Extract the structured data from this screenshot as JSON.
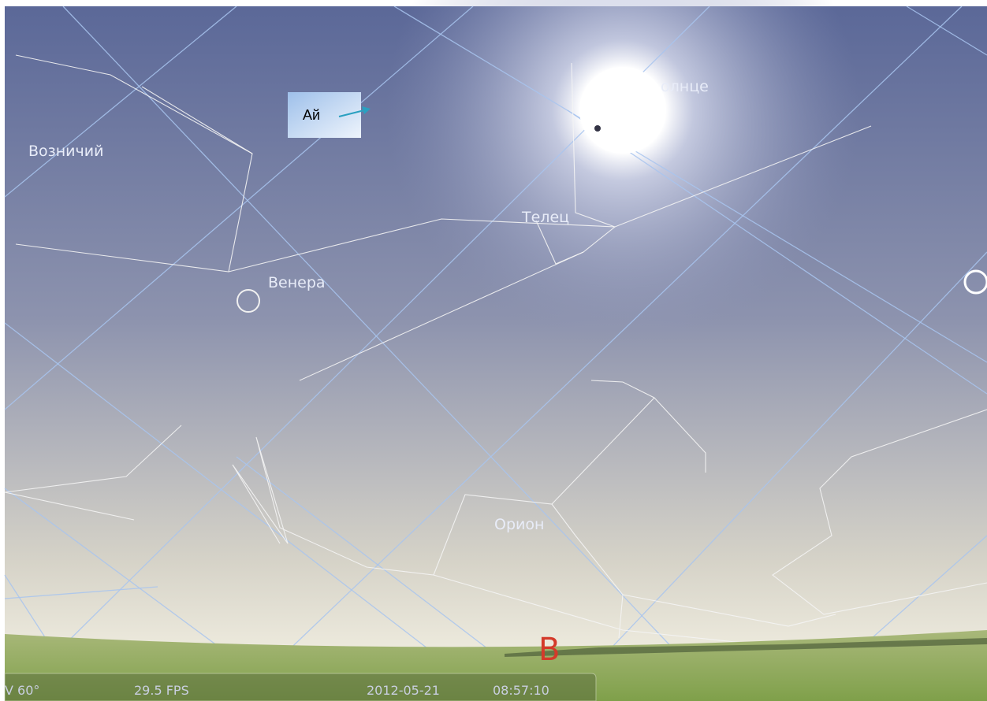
{
  "sky_labels": {
    "auriga": "Возничий",
    "venus": "Венера",
    "taurus": "Телец",
    "sun": "олнце",
    "orion": "Орион",
    "cardinal": "В"
  },
  "callout": "Ай",
  "status_bar": {
    "fov": "V 60°",
    "fps": "29.5 FPS",
    "date": "2012-05-21",
    "time": "08:57:10"
  }
}
